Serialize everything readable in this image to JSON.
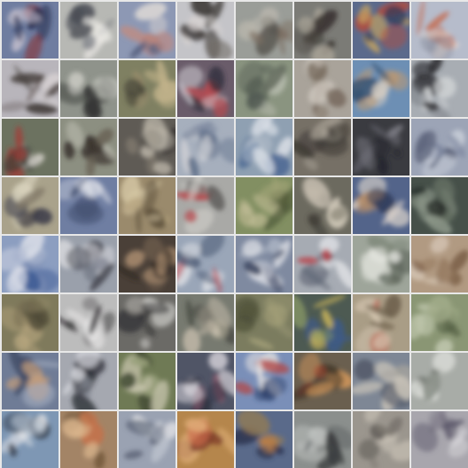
{
  "grid": {
    "rows": 8,
    "cols": 8,
    "tiles": [
      {
        "bg": "#6f7da0",
        "c1": "#1e2448",
        "c2": "#c9c3cf",
        "c3": "#8a2e2e"
      },
      {
        "bg": "#b7b8b4",
        "c1": "#4b4e56",
        "c2": "#e8e6e2",
        "c3": "#7d7f86"
      },
      {
        "bg": "#8d98b4",
        "c1": "#c48a7d",
        "c2": "#55607e",
        "c3": "#e0dbd6"
      },
      {
        "bg": "#c4c4c8",
        "c1": "#3a3533",
        "c2": "#d9d4d2",
        "c3": "#76706a"
      },
      {
        "bg": "#9a9d98",
        "c1": "#7c6f62",
        "c2": "#b9b6ad",
        "c3": "#58544f"
      },
      {
        "bg": "#7b7b76",
        "c1": "#35302c",
        "c2": "#a9a397",
        "c3": "#5d5a54"
      },
      {
        "bg": "#5b6a8c",
        "c1": "#c3a262",
        "c2": "#b64a3a",
        "c3": "#2f3a57"
      },
      {
        "bg": "#b6bccb",
        "c1": "#c46f56",
        "c2": "#e2d9d4",
        "c3": "#8b8f9e"
      },
      {
        "bg": "#b8b5bb",
        "c1": "#403836",
        "c2": "#d7d2d3",
        "c3": "#6f6664"
      },
      {
        "bg": "#8f938b",
        "c1": "#2e2f2e",
        "c2": "#c9cac3",
        "c3": "#5e625d"
      },
      {
        "bg": "#7f8062",
        "c1": "#c1b28a",
        "c2": "#4c4a3b",
        "c3": "#9a8d6d"
      },
      {
        "bg": "#6a5c6a",
        "c1": "#d2d0d6",
        "c2": "#b64a50",
        "c3": "#2c2a35"
      },
      {
        "bg": "#8a9480",
        "c1": "#4f5850",
        "c2": "#bfc3b6",
        "c3": "#666e61"
      },
      {
        "bg": "#a9a39a",
        "c1": "#6e5f52",
        "c2": "#cfc9c0",
        "c3": "#867a6c"
      },
      {
        "bg": "#6d8fb4",
        "c1": "#c19a6e",
        "c2": "#385472",
        "c3": "#d9cfc3"
      },
      {
        "bg": "#a8adb3",
        "c1": "#2c2d30",
        "c2": "#d6d8da",
        "c3": "#777b80"
      },
      {
        "bg": "#6c7260",
        "c1": "#a63a35",
        "c2": "#d6d2cb",
        "c3": "#3c3f38"
      },
      {
        "bg": "#8c8f81",
        "c1": "#3a332d",
        "c2": "#c8c7bb",
        "c3": "#6a6355"
      },
      {
        "bg": "#5f5b55",
        "c1": "#c9c2b5",
        "c2": "#8e8577",
        "c3": "#2e2b29"
      },
      {
        "bg": "#a6afbd",
        "c1": "#5b6b86",
        "c2": "#dad9dc",
        "c3": "#7d8aa0"
      },
      {
        "bg": "#8fa0b2",
        "c1": "#e0e4ea",
        "c2": "#3f5f8d",
        "c3": "#b8c2cd"
      },
      {
        "bg": "#767066",
        "c1": "#3d3833",
        "c2": "#aaa397",
        "c3": "#58524a"
      },
      {
        "bg": "#3a3b40",
        "c1": "#5b5b63",
        "c2": "#21222a",
        "c3": "#7c7c84"
      },
      {
        "bg": "#9ca4b6",
        "c1": "#5a6178",
        "c2": "#cbd0da",
        "c3": "#768099"
      },
      {
        "bg": "#a9a28b",
        "c1": "#3a3a48",
        "c2": "#d8d2bc",
        "c3": "#7f7766"
      },
      {
        "bg": "#6f7ea2",
        "c1": "#e2e4ea",
        "c2": "#3d4a6a",
        "c3": "#a9b2c6"
      },
      {
        "bg": "#9a8a6c",
        "c1": "#d7c9a6",
        "c2": "#5c4f3b",
        "c3": "#b8a781"
      },
      {
        "bg": "#a9a9a6",
        "c1": "#b74a4e",
        "c2": "#dad8d2",
        "c3": "#5f5d5c"
      },
      {
        "bg": "#828f62",
        "c1": "#c6c09a",
        "c2": "#4b5536",
        "c3": "#a3a678"
      },
      {
        "bg": "#6c6a5f",
        "c1": "#cfc7b8",
        "c2": "#3b3933",
        "c3": "#8e8a7b"
      },
      {
        "bg": "#53648a",
        "c1": "#e0d7cd",
        "c2": "#b48d6b",
        "c3": "#2e3a58"
      },
      {
        "bg": "#465049",
        "c1": "#8f9a8b",
        "c2": "#2b312c",
        "c3": "#6c7668"
      },
      {
        "bg": "#8c9ec0",
        "c1": "#e3e5ec",
        "c2": "#3d5a93",
        "c3": "#b7c1d6"
      },
      {
        "bg": "#9aa0ab",
        "c1": "#3a3c45",
        "c2": "#d5d6db",
        "c3": "#6e7380"
      },
      {
        "bg": "#4a4038",
        "c1": "#a98c6f",
        "c2": "#2c2520",
        "c3": "#6f5d4d"
      },
      {
        "bg": "#9aa6b8",
        "c1": "#e2e4e8",
        "c2": "#4d5b75",
        "c3": "#b8404a"
      },
      {
        "bg": "#7f8aa0",
        "c1": "#d8dbe2",
        "c2": "#3d4660",
        "c3": "#a9b1c1"
      },
      {
        "bg": "#a6abb3",
        "c1": "#e5e7ea",
        "c2": "#5b6270",
        "c3": "#b9434b"
      },
      {
        "bg": "#9ea59a",
        "c1": "#e1e2dc",
        "c2": "#5a6257",
        "c3": "#7d8678"
      },
      {
        "bg": "#b19a82",
        "c1": "#7d6149",
        "c2": "#dacbba",
        "c3": "#9a7f65"
      },
      {
        "bg": "#7f7a5c",
        "c1": "#b7a67f",
        "c2": "#4e4936",
        "c3": "#948a69"
      },
      {
        "bg": "#bcbcbc",
        "c1": "#2d2c2e",
        "c2": "#e3e2e2",
        "c3": "#7a7879"
      },
      {
        "bg": "#6b6a66",
        "c1": "#2f2f31",
        "c2": "#d7d6d2",
        "c3": "#9b9994"
      },
      {
        "bg": "#777a70",
        "c1": "#c8bfae",
        "c2": "#3e3f39",
        "c3": "#9a9686"
      },
      {
        "bg": "#7b7c5f",
        "c1": "#a8a47c",
        "c2": "#4e5039",
        "c3": "#8e8d6c"
      },
      {
        "bg": "#4d5a52",
        "c1": "#c9b45a",
        "c2": "#3c5a8c",
        "c3": "#8a9a66"
      },
      {
        "bg": "#a99d86",
        "c1": "#d8c9b4",
        "c2": "#6e604c",
        "c3": "#c06a58"
      },
      {
        "bg": "#8a9674",
        "c1": "#bfc6ad",
        "c2": "#4e5a3f",
        "c3": "#a3ad8a"
      },
      {
        "bg": "#6f7c96",
        "c1": "#c9a07a",
        "c2": "#3b4560",
        "c3": "#a7b0c2"
      },
      {
        "bg": "#a5a8b0",
        "c1": "#2a2b33",
        "c2": "#d9dbe0",
        "c3": "#7a7e89"
      },
      {
        "bg": "#6f7a55",
        "c1": "#c8c5ae",
        "c2": "#3d4530",
        "c3": "#98a07a"
      },
      {
        "bg": "#505566",
        "c1": "#d3cfd6",
        "c2": "#2d3040",
        "c3": "#8a5a6e"
      },
      {
        "bg": "#7a8fb8",
        "c1": "#e3e1e0",
        "c2": "#2c3f6a",
        "c3": "#b14a4a"
      },
      {
        "bg": "#6a5f4f",
        "c1": "#d79a5c",
        "c2": "#3b3126",
        "c3": "#a8452f"
      },
      {
        "bg": "#7e8795",
        "c1": "#c7c1b7",
        "c2": "#4a5160",
        "c3": "#a9a69e"
      },
      {
        "bg": "#a8aca7",
        "c1": "#e3e5e1",
        "c2": "#656b64",
        "c3": "#8a8f88"
      },
      {
        "bg": "#7e97b4",
        "c1": "#e6e7ea",
        "c2": "#2e3542",
        "c3": "#b7c2d0"
      },
      {
        "bg": "#a38466",
        "c1": "#d9b48c",
        "c2": "#6b5035",
        "c3": "#c4724a"
      },
      {
        "bg": "#9aa2b2",
        "c1": "#e2e3e6",
        "c2": "#555d70",
        "c3": "#bcc2cc"
      },
      {
        "bg": "#b5864c",
        "c1": "#e0b07a",
        "c2": "#7c3b2a",
        "c3": "#c9694a"
      },
      {
        "bg": "#5a6a8a",
        "c1": "#c7803f",
        "c2": "#2c3550",
        "c3": "#8f7a58"
      },
      {
        "bg": "#8b8f8d",
        "c1": "#3c3f40",
        "c2": "#c1c4c2",
        "c3": "#65696a"
      },
      {
        "bg": "#9b968e",
        "c1": "#c8c1b5",
        "c2": "#5e5a54",
        "c3": "#7f7a72"
      },
      {
        "bg": "#a8a6ad",
        "c1": "#5c586a",
        "c2": "#d4d2d6",
        "c3": "#7e7a88"
      }
    ]
  }
}
